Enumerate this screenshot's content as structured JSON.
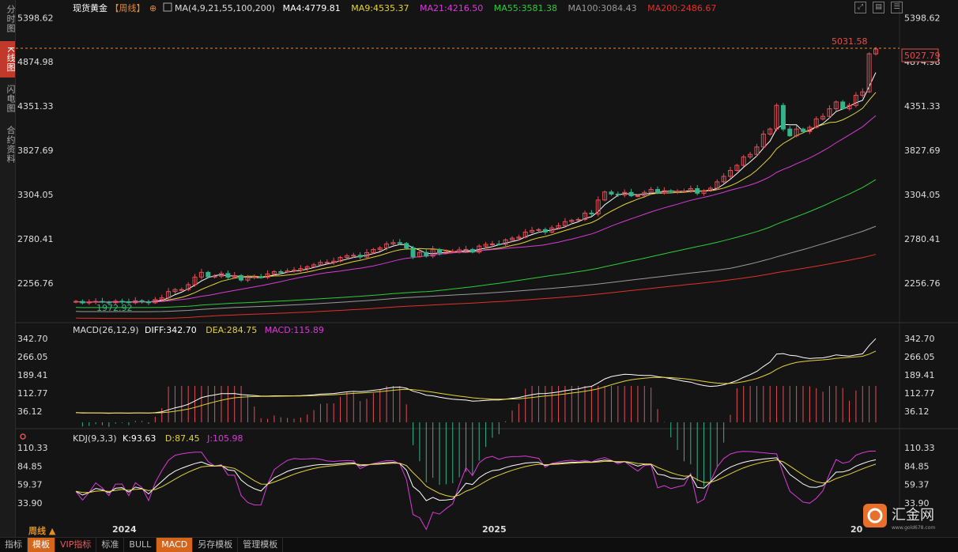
{
  "sidebar": {
    "tabs": [
      "分时图",
      "K线图",
      "闪电图",
      "合约资料"
    ],
    "active": 1
  },
  "header": {
    "symbol": "现货黄金",
    "period_tag": "【周线】",
    "ma_params": "MA(4,9,21,55,100,200)",
    "ma": [
      {
        "label": "MA4:4779.81",
        "color": "#ffffff"
      },
      {
        "label": "MA9:4535.37",
        "color": "#e5d33a"
      },
      {
        "label": "MA21:4216.50",
        "color": "#d93bd9"
      },
      {
        "label": "MA55:3581.38",
        "color": "#2fcc39"
      },
      {
        "label": "MA100:3084.43",
        "color": "#9a9a9a"
      },
      {
        "label": "MA200:2486.67",
        "color": "#e0322a"
      }
    ]
  },
  "macd_header": {
    "params": "MACD(26,12,9)",
    "diff": "DIFF:342.70",
    "dea": "DEA:284.75",
    "macd": "MACD:115.89"
  },
  "kdj_header": {
    "params": "KDJ(9,3,3)",
    "k": "K:93.63",
    "d": "D:87.45",
    "j": "J:105.98"
  },
  "price_labels": {
    "high": "5031.58",
    "low": "1972.92",
    "last": "5027.79"
  },
  "bottom_tabs": [
    "指标",
    "模板",
    "VIP指标",
    "标准",
    "BULL",
    "MACD",
    "另存模板",
    "管理模板"
  ],
  "period_button": "周线 ▲",
  "logo_text": "汇金网",
  "logo_url": "www.gold678.com",
  "colors": {
    "up": "#e0505a",
    "down": "#35b28a",
    "bg": "#141414"
  },
  "chart_data": {
    "type": "candlestick",
    "period": "weekly",
    "x_ticks": [
      "2024",
      "2025",
      "20"
    ],
    "main_axis": {
      "ticks": [
        "5398.62",
        "4874.98",
        "4351.33",
        "3827.69",
        "3304.05",
        "2780.41",
        "2256.76"
      ],
      "ylim": [
        1910,
        5420
      ]
    },
    "macd_axis": {
      "ticks": [
        "342.70",
        "266.05",
        "189.41",
        "112.77",
        "36.12"
      ]
    },
    "kdj_axis": {
      "ticks": [
        "110.33",
        "84.85",
        "59.37",
        "33.90"
      ]
    },
    "candles_close": [
      2040,
      2022,
      2034,
      2040,
      2030,
      2025,
      2042,
      2036,
      2024,
      2048,
      2036,
      2024,
      2062,
      2082,
      2156,
      2180,
      2180,
      2238,
      2328,
      2384,
      2330,
      2338,
      2370,
      2325,
      2346,
      2292,
      2330,
      2330,
      2324,
      2365,
      2392,
      2387,
      2400,
      2410,
      2428,
      2450,
      2473,
      2502,
      2502,
      2516,
      2560,
      2580,
      2586,
      2565,
      2617,
      2654,
      2673,
      2720,
      2736,
      2725,
      2673,
      2569,
      2620,
      2576,
      2654,
      2610,
      2630,
      2630,
      2650,
      2655,
      2623,
      2694,
      2715,
      2720,
      2715,
      2768,
      2788,
      2800,
      2860,
      2880,
      2890,
      2860,
      2910,
      2936,
      2984,
      3000,
      3010,
      3085,
      3075,
      3240,
      3335,
      3310,
      3300,
      3330,
      3290,
      3290,
      3330,
      3365,
      3323,
      3350,
      3340,
      3345,
      3345,
      3375,
      3320,
      3350,
      3380,
      3455,
      3520,
      3590,
      3650,
      3750,
      3780,
      3868,
      4020,
      4080,
      4360,
      4080,
      4000,
      4080,
      4050,
      4100,
      4200,
      4230,
      4320,
      4400,
      4320,
      4360,
      4480,
      4520,
      4970,
      5027
    ]
  }
}
